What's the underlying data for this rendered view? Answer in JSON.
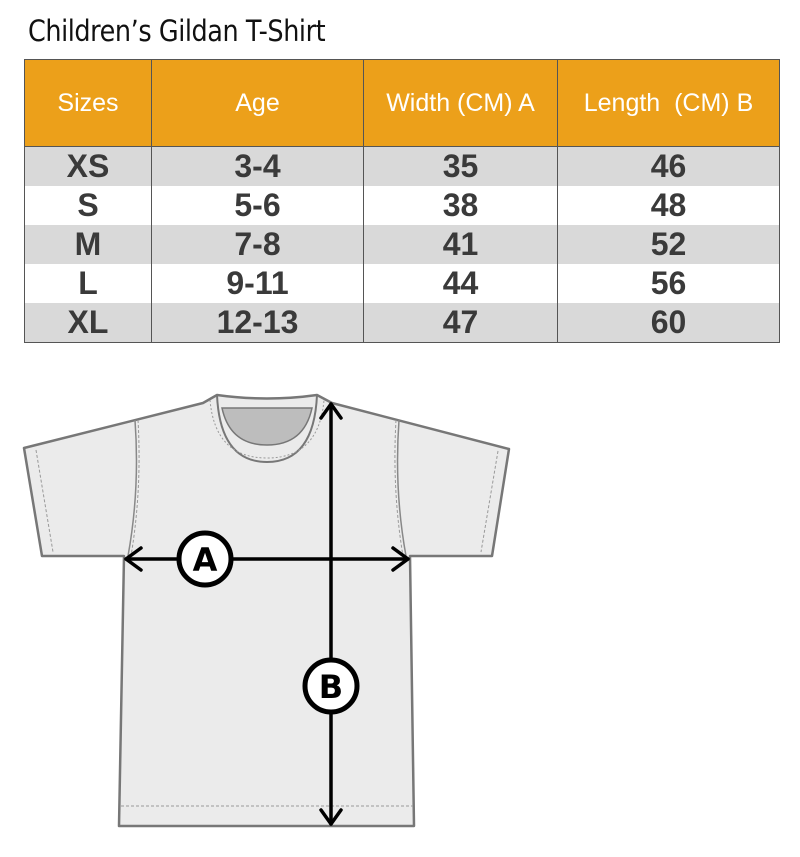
{
  "title": "Children’s Gildan T-Shirt",
  "table": {
    "headers": [
      "Sizes",
      "Age",
      "Width (CM) A",
      "Length  (CM) B"
    ],
    "rows": [
      [
        "XS",
        "3-4",
        "35",
        "46"
      ],
      [
        "S",
        "5-6",
        "38",
        "48"
      ],
      [
        "M",
        "7-8",
        "41",
        "52"
      ],
      [
        "L",
        "9-11",
        "44",
        "56"
      ],
      [
        "XL",
        "12-13",
        "47",
        "60"
      ]
    ]
  },
  "diagram": {
    "width_marker": "A",
    "length_marker": "B"
  },
  "colors": {
    "header": "#eca01a",
    "row_shaded": "#d9d9d9",
    "shirt": "#ebebeb"
  }
}
